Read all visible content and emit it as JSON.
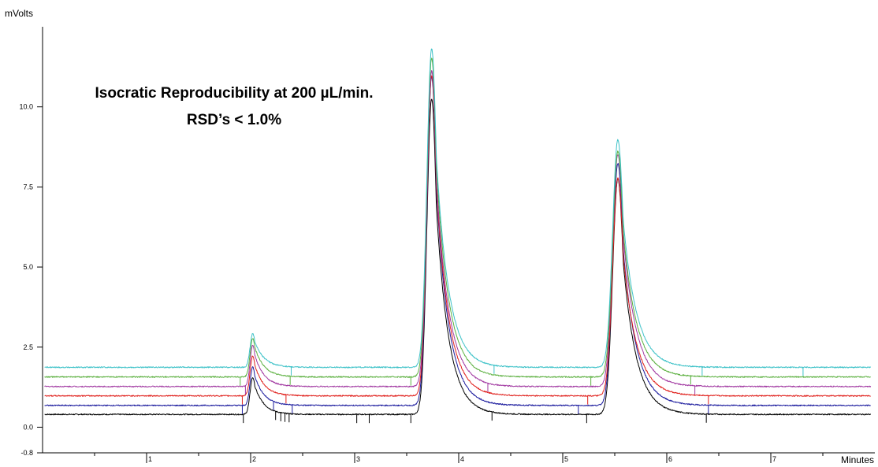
{
  "chart_data": {
    "type": "line",
    "title_lines": [
      "Isocratic Reproducibility at 200 µL/min.",
      "RSD’s < 1.0%"
    ],
    "xlabel": "Minutes",
    "ylabel": "mVolts",
    "xlim": [
      0,
      8
    ],
    "ylim": [
      -0.8,
      12.5
    ],
    "x_ticks": [
      {
        "value": 1,
        "label": "1"
      },
      {
        "value": 2,
        "label": "2"
      },
      {
        "value": 3,
        "label": "3"
      },
      {
        "value": 4,
        "label": "4"
      },
      {
        "value": 5,
        "label": "5"
      },
      {
        "value": 6,
        "label": "6"
      },
      {
        "value": 7,
        "label": "7"
      }
    ],
    "y_ticks": [
      {
        "value": -0.8,
        "label": "-0.8"
      },
      {
        "value": 0.0,
        "label": "0.0"
      },
      {
        "value": 2.5,
        "label": "2.5"
      },
      {
        "value": 5.0,
        "label": "5.0"
      },
      {
        "value": 7.5,
        "label": "7.5"
      },
      {
        "value": 10.0,
        "label": "10.0"
      }
    ],
    "peaks": [
      {
        "x": 2.02,
        "sigma": 0.025,
        "tail": 0.09
      },
      {
        "x": 3.74,
        "sigma": 0.045,
        "tail": 0.12
      },
      {
        "x": 5.53,
        "sigma": 0.05,
        "tail": 0.13
      }
    ],
    "series": [
      {
        "color": "#000000",
        "baseline": 0.4,
        "heights": [
          1.15,
          9.85,
          7.35
        ],
        "markers": [
          1.93,
          2.24,
          2.29,
          2.33,
          2.37,
          3.02,
          3.14,
          3.54,
          4.32,
          5.23,
          6.38
        ]
      },
      {
        "color": "#1c1c9e",
        "baseline": 0.68,
        "heights": [
          1.2,
          10.25,
          7.55
        ],
        "markers": [
          1.92,
          2.22,
          2.4,
          5.15,
          6.4
        ]
      },
      {
        "color": "#e0201c",
        "baseline": 0.98,
        "heights": [
          1.25,
          10.0,
          6.8
        ],
        "markers": [
          1.92,
          2.34,
          5.24,
          6.4
        ]
      },
      {
        "color": "#a23aa2",
        "baseline": 1.27,
        "heights": [
          1.28,
          9.85,
          7.25
        ],
        "markers": [
          1.95,
          4.28,
          6.27
        ]
      },
      {
        "color": "#5cb040",
        "baseline": 1.57,
        "heights": [
          1.2,
          9.95,
          7.05
        ],
        "markers": [
          1.9,
          2.38,
          3.54,
          5.27,
          6.23
        ]
      },
      {
        "color": "#3ec2c8",
        "baseline": 1.87,
        "heights": [
          1.05,
          9.95,
          7.1
        ],
        "markers": [
          2.39,
          4.34,
          6.34,
          7.31
        ]
      }
    ],
    "grid": false,
    "legend": "none"
  }
}
